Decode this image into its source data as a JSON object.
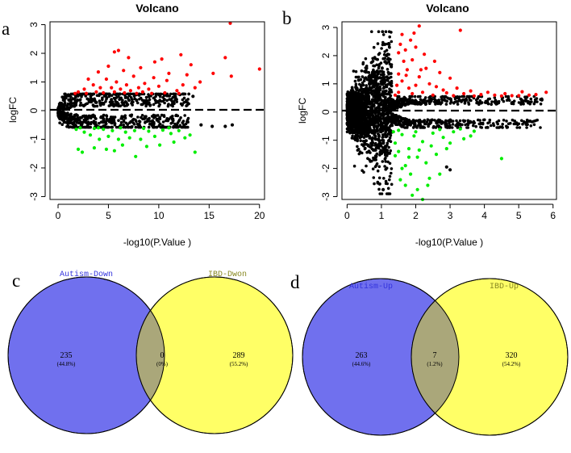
{
  "colors": {
    "up": "#ff0000",
    "down": "#00ee00",
    "neutral": "#000000",
    "venn_left": "#7070ee",
    "venn_right": "#ffff66",
    "venn_overlap": "#aaa77a",
    "venn_left_label": "#3333dd",
    "venn_right_label": "#888822"
  },
  "chart_data": [
    {
      "panel": "a",
      "type": "scatter",
      "title": "Volcano",
      "xlabel": "-log10(P.Value )",
      "ylabel": "logFC",
      "xlim": [
        -0.8,
        20.5
      ],
      "ylim": [
        -3.1,
        3.1
      ],
      "xticks": [
        0,
        5,
        10,
        15,
        20
      ],
      "yticks": [
        -3,
        -2,
        -1,
        0,
        1,
        2,
        3
      ],
      "threshold_line": {
        "y": 0,
        "style": "dashed"
      },
      "series": [
        {
          "name": "up",
          "color": "#ff0000",
          "points": [
            [
              17.1,
              3.05
            ],
            [
              20.0,
              1.45
            ],
            [
              16.6,
              1.85
            ],
            [
              17.2,
              1.2
            ],
            [
              15.4,
              1.3
            ],
            [
              13.2,
              1.6
            ],
            [
              12.2,
              1.95
            ],
            [
              10.3,
              1.8
            ],
            [
              9.6,
              1.7
            ],
            [
              7.0,
              1.85
            ],
            [
              6.0,
              2.1
            ],
            [
              5.6,
              2.05
            ],
            [
              8.2,
              1.5
            ],
            [
              6.5,
              1.4
            ],
            [
              5.0,
              1.55
            ],
            [
              4.0,
              1.35
            ],
            [
              3.0,
              1.1
            ],
            [
              11.0,
              1.3
            ],
            [
              12.8,
              1.25
            ],
            [
              14.1,
              1.0
            ],
            [
              13.6,
              0.8
            ],
            [
              12.4,
              0.9
            ],
            [
              10.8,
              1.05
            ],
            [
              9.5,
              1.15
            ],
            [
              8.6,
              0.95
            ],
            [
              7.5,
              1.2
            ],
            [
              6.8,
              0.9
            ],
            [
              5.8,
              1.0
            ],
            [
              4.8,
              1.1
            ],
            [
              4.2,
              0.8
            ],
            [
              3.5,
              0.9
            ],
            [
              2.6,
              0.75
            ],
            [
              2.0,
              0.65
            ],
            [
              11.8,
              0.7
            ],
            [
              10.0,
              0.85
            ],
            [
              9.0,
              0.75
            ],
            [
              8.0,
              0.8
            ],
            [
              7.2,
              0.7
            ],
            [
              6.2,
              0.75
            ],
            [
              5.3,
              0.8
            ],
            [
              3.8,
              0.65
            ],
            [
              2.8,
              0.6
            ],
            [
              1.7,
              0.6
            ],
            [
              12.0,
              0.6
            ],
            [
              10.6,
              0.62
            ],
            [
              9.3,
              0.6
            ],
            [
              8.4,
              0.65
            ],
            [
              7.8,
              0.6
            ],
            [
              6.6,
              0.62
            ],
            [
              5.6,
              0.65
            ],
            [
              4.5,
              0.62
            ]
          ]
        },
        {
          "name": "down",
          "color": "#00ee00",
          "points": [
            [
              7.7,
              -1.6
            ],
            [
              13.6,
              -1.45
            ],
            [
              2.0,
              -1.35
            ],
            [
              2.4,
              -1.45
            ],
            [
              3.6,
              -1.3
            ],
            [
              4.8,
              -1.35
            ],
            [
              5.6,
              -1.4
            ],
            [
              6.4,
              -1.2
            ],
            [
              8.8,
              -1.25
            ],
            [
              10.1,
              -1.2
            ],
            [
              11.5,
              -1.1
            ],
            [
              12.6,
              -0.95
            ],
            [
              13.1,
              -0.85
            ],
            [
              11.2,
              -0.8
            ],
            [
              9.6,
              -0.9
            ],
            [
              8.2,
              -1.0
            ],
            [
              7.1,
              -0.95
            ],
            [
              6.0,
              -1.0
            ],
            [
              5.0,
              -0.9
            ],
            [
              4.1,
              -1.0
            ],
            [
              3.2,
              -0.85
            ],
            [
              2.6,
              -0.75
            ],
            [
              1.8,
              -0.65
            ],
            [
              12.0,
              -0.7
            ],
            [
              10.4,
              -0.68
            ],
            [
              9.0,
              -0.72
            ],
            [
              7.6,
              -0.7
            ],
            [
              6.7,
              -0.75
            ],
            [
              5.4,
              -0.7
            ],
            [
              4.5,
              -0.65
            ],
            [
              3.6,
              -0.62
            ],
            [
              2.2,
              -0.6
            ],
            [
              11.0,
              -0.6
            ],
            [
              8.5,
              -0.62
            ],
            [
              6.2,
              -0.6
            ],
            [
              4.0,
              -0.6
            ]
          ]
        },
        {
          "name": "not significant",
          "color": "#000000",
          "points": [
            [
              14.2,
              -0.5
            ],
            [
              16.6,
              -0.55
            ],
            [
              17.3,
              -0.5
            ],
            [
              15.3,
              -0.55
            ],
            [
              13.4,
              0.5
            ],
            [
              11.6,
              0.52
            ],
            [
              12.5,
              -0.5
            ]
          ]
        }
      ]
    },
    {
      "panel": "b",
      "type": "scatter",
      "title": "Volcano",
      "xlabel": "-log10(P.Value )",
      "ylabel": "logFC",
      "xlim": [
        -0.15,
        6.1
      ],
      "ylim": [
        -3.1,
        3.2
      ],
      "xticks": [
        0,
        1,
        2,
        3,
        4,
        5,
        6
      ],
      "yticks": [
        -3,
        -2,
        -1,
        0,
        1,
        2,
        3
      ],
      "threshold_line": {
        "y": 0,
        "style": "dashed"
      },
      "series": [
        {
          "name": "up",
          "color": "#ff0000",
          "points": [
            [
              2.1,
              3.05
            ],
            [
              3.3,
              2.9
            ],
            [
              1.95,
              2.8
            ],
            [
              1.6,
              2.75
            ],
            [
              1.85,
              2.55
            ],
            [
              2.0,
              2.3
            ],
            [
              1.7,
              2.2
            ],
            [
              1.55,
              2.4
            ],
            [
              2.25,
              2.05
            ],
            [
              1.9,
              1.85
            ],
            [
              2.55,
              1.8
            ],
            [
              2.3,
              1.55
            ],
            [
              1.75,
              1.5
            ],
            [
              1.5,
              1.35
            ],
            [
              2.7,
              1.4
            ],
            [
              3.0,
              1.2
            ],
            [
              1.6,
              1.1
            ],
            [
              2.1,
              1.25
            ],
            [
              1.45,
              0.95
            ],
            [
              2.4,
              1.0
            ],
            [
              1.8,
              0.85
            ],
            [
              2.6,
              0.9
            ],
            [
              3.2,
              0.85
            ],
            [
              3.6,
              0.75
            ],
            [
              4.1,
              0.7
            ],
            [
              4.6,
              0.65
            ],
            [
              5.1,
              0.72
            ],
            [
              5.3,
              0.6
            ],
            [
              5.8,
              0.7
            ],
            [
              5.5,
              0.62
            ],
            [
              4.8,
              0.58
            ],
            [
              4.3,
              0.6
            ],
            [
              3.9,
              0.62
            ],
            [
              3.4,
              0.65
            ],
            [
              2.9,
              0.68
            ],
            [
              2.2,
              0.7
            ],
            [
              1.9,
              0.65
            ],
            [
              1.5,
              0.7
            ],
            [
              1.4,
              0.6
            ],
            [
              2.5,
              0.6
            ],
            [
              3.1,
              0.58
            ],
            [
              3.7,
              0.57
            ],
            [
              4.5,
              0.57
            ],
            [
              5.0,
              0.58
            ],
            [
              2.8,
              0.78
            ],
            [
              2.0,
              0.95
            ],
            [
              1.65,
              1.8
            ],
            [
              1.5,
              2.1
            ],
            [
              1.72,
              1.3
            ],
            [
              2.15,
              1.5
            ]
          ]
        },
        {
          "name": "down",
          "color": "#00ee00",
          "points": [
            [
              2.2,
              -3.1
            ],
            [
              1.9,
              -2.95
            ],
            [
              2.05,
              -2.75
            ],
            [
              1.7,
              -2.6
            ],
            [
              2.7,
              -2.2
            ],
            [
              2.4,
              -2.35
            ],
            [
              1.85,
              -2.2
            ],
            [
              1.6,
              -2.0
            ],
            [
              4.5,
              -1.65
            ],
            [
              2.3,
              -1.8
            ],
            [
              2.05,
              -1.6
            ],
            [
              1.5,
              -1.4
            ],
            [
              2.6,
              -1.5
            ],
            [
              1.8,
              -1.3
            ],
            [
              3.0,
              -1.1
            ],
            [
              3.4,
              -0.95
            ],
            [
              2.8,
              -0.9
            ],
            [
              1.4,
              -1.1
            ],
            [
              2.2,
              -1.05
            ],
            [
              1.95,
              -0.85
            ],
            [
              1.6,
              -0.8
            ],
            [
              2.5,
              -0.75
            ],
            [
              3.1,
              -0.7
            ],
            [
              3.7,
              -0.68
            ],
            [
              2.0,
              -0.7
            ],
            [
              1.5,
              -0.65
            ],
            [
              1.35,
              -0.7
            ],
            [
              2.7,
              -0.62
            ],
            [
              3.3,
              -0.6
            ],
            [
              1.7,
              -1.9
            ],
            [
              2.45,
              -1.2
            ],
            [
              1.55,
              -2.4
            ],
            [
              1.8,
              -1.6
            ],
            [
              2.1,
              -1.35
            ],
            [
              2.9,
              -1.3
            ],
            [
              3.6,
              -0.85
            ],
            [
              1.4,
              -1.55
            ],
            [
              2.35,
              -2.6
            ]
          ]
        },
        {
          "name": "not significant",
          "color": "#000000",
          "points": [
            [
              2.9,
              -1.95
            ],
            [
              3.0,
              -2.05
            ],
            [
              1.05,
              -2.75
            ],
            [
              0.95,
              -2.55
            ],
            [
              1.1,
              2.4
            ],
            [
              1.15,
              2.0
            ]
          ]
        }
      ]
    },
    {
      "panel": "c",
      "type": "venn",
      "sets": [
        {
          "name": "Autism-Down",
          "only_count": "235",
          "only_pct": "(44.8%)"
        },
        {
          "name": "IBD-Dwon",
          "only_count": "289",
          "only_pct": "(55.2%)"
        }
      ],
      "intersection": {
        "count": "0",
        "pct": "(0%)"
      }
    },
    {
      "panel": "d",
      "type": "venn",
      "sets": [
        {
          "name": "Autism-Up",
          "only_count": "263",
          "only_pct": "(44.6%)"
        },
        {
          "name": "IBD-Up",
          "only_count": "320",
          "only_pct": "(54.2%)"
        }
      ],
      "intersection": {
        "count": "7",
        "pct": "(1.2%)"
      }
    }
  ]
}
